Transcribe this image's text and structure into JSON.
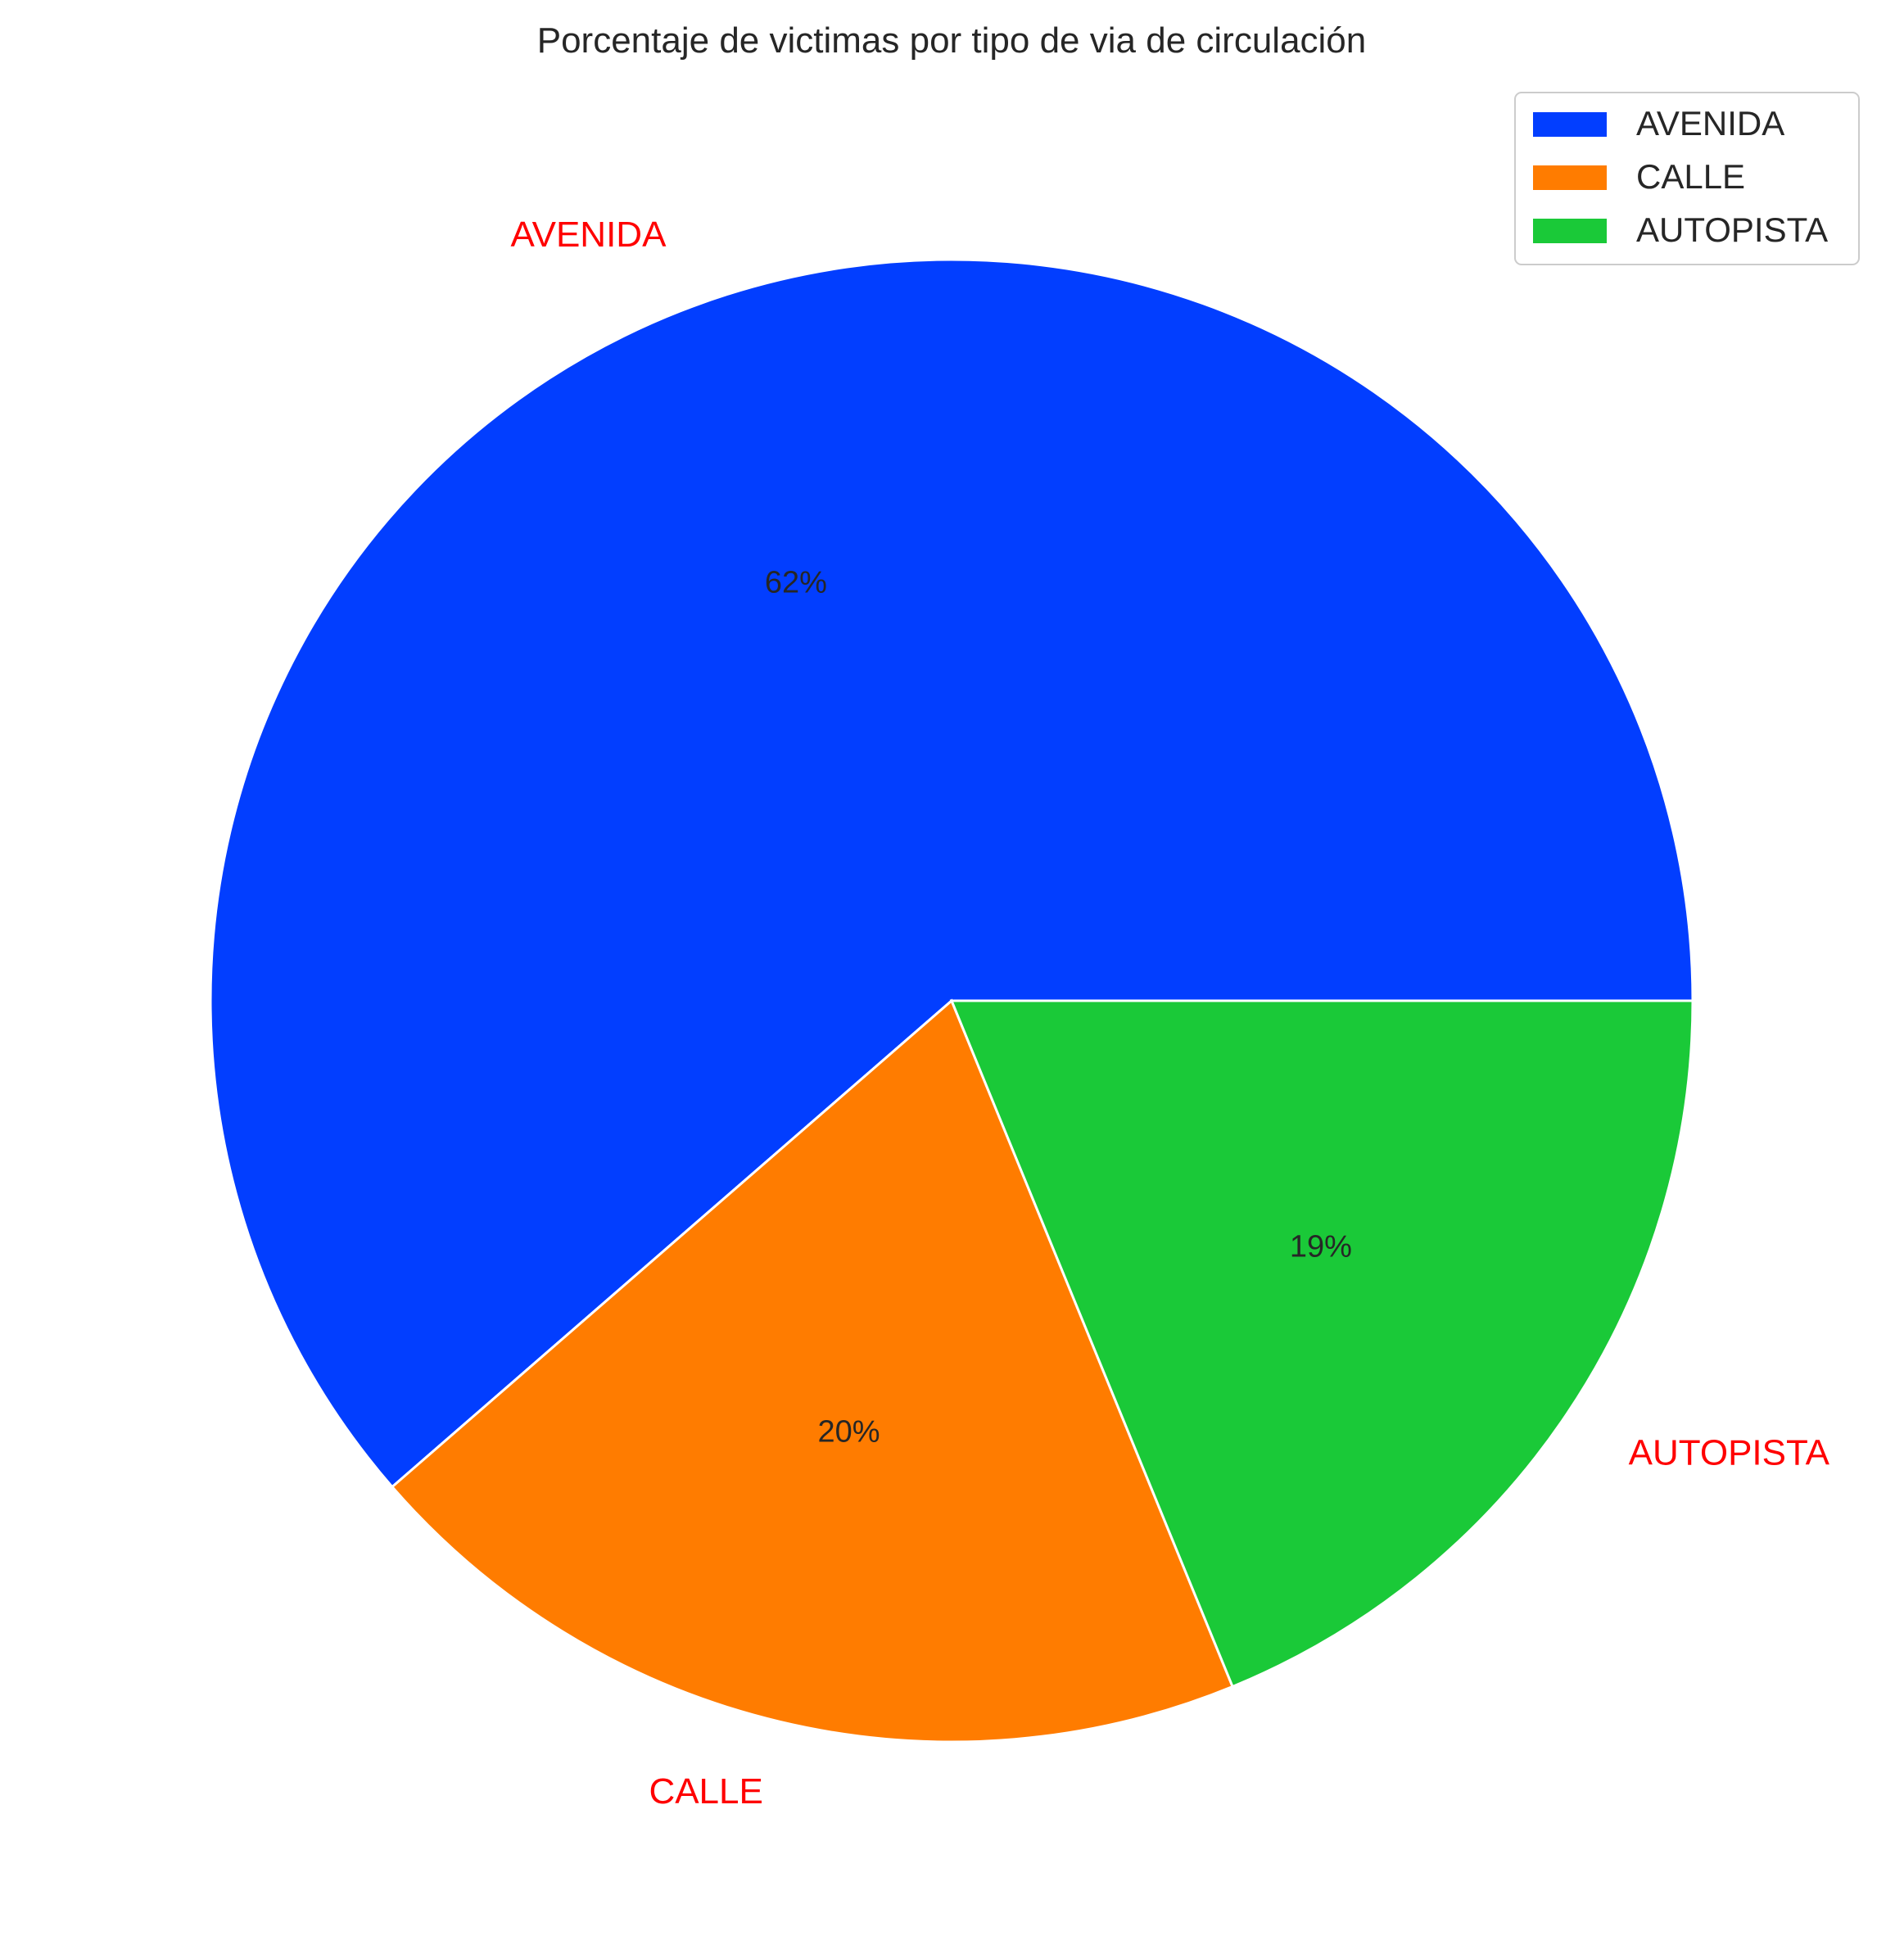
{
  "chart_data": {
    "type": "pie",
    "title": "Porcentaje de victimas por tipo de via de circulación",
    "categories": [
      "AVENIDA",
      "CALLE",
      "AUTOPISTA"
    ],
    "values": [
      62,
      20,
      19
    ],
    "value_labels": [
      "62%",
      "20%",
      "19%"
    ],
    "colors": [
      "#023eff",
      "#ff7c00",
      "#1ac938"
    ],
    "label_color": "#ff0000",
    "start_angle_deg": 0,
    "direction": "counterclockwise",
    "legend": {
      "position": "top-right",
      "entries": [
        "AVENIDA",
        "CALLE",
        "AUTOPISTA"
      ]
    }
  }
}
